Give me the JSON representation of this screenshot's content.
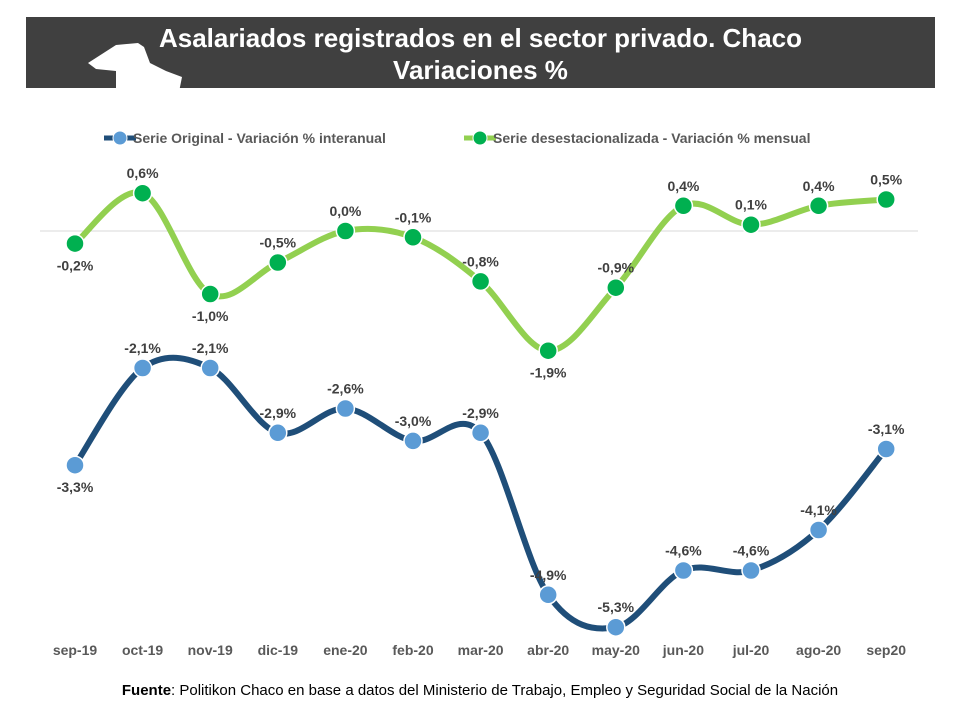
{
  "title": {
    "line1": "Asalariados registrados en el sector privado. Chaco",
    "line2": "Variaciones %"
  },
  "icon": "chaco-province-map-icon",
  "source": {
    "label": "Fuente",
    "text": ": Politikon Chaco en base a datos del Ministerio de Trabajo, Empleo y Seguridad Social de la Nación"
  },
  "chart_data": {
    "type": "line",
    "categories": [
      "sep-19",
      "oct-19",
      "nov-19",
      "dic-19",
      "ene-20",
      "feb-20",
      "mar-20",
      "abr-20",
      "may-20",
      "jun-20",
      "jul-20",
      "ago-20",
      "sep20"
    ],
    "series": [
      {
        "name": "Serie Original - Variación % interanual",
        "values": [
          -3.3,
          -2.1,
          -2.1,
          -2.9,
          -2.6,
          -3.0,
          -2.9,
          -4.9,
          -5.3,
          -4.6,
          -4.6,
          -4.1,
          -3.1
        ],
        "labels": [
          "-3,3%",
          "-2,1%",
          "-2,1%",
          "-2,9%",
          "-2,6%",
          "-3,0%",
          "-2,9%",
          "-4,9%",
          "-5,3%",
          "-4,6%",
          "-4,6%",
          "-4,1%",
          "-3,1%"
        ],
        "line_color": "#1F4E79",
        "marker_color": "#5B9BD5",
        "axis": "secondary"
      },
      {
        "name": "Serie desestacionalizada - Variación % mensual",
        "values": [
          -0.2,
          0.6,
          -1.0,
          -0.5,
          0.0,
          -0.1,
          -0.8,
          -1.9,
          -0.9,
          0.4,
          0.1,
          0.4,
          0.5
        ],
        "labels": [
          "-0,2%",
          "0,6%",
          "-1,0%",
          "-0,5%",
          "0,0%",
          "-0,1%",
          "-0,8%",
          "-1,9%",
          "-0,9%",
          "0,4%",
          "0,1%",
          "0,4%",
          "0,5%"
        ],
        "line_color": "#92D050",
        "marker_color": "#00B050",
        "axis": "primary"
      }
    ],
    "legend_position": "top",
    "grid": false,
    "zero_line": true,
    "smooth": true
  }
}
